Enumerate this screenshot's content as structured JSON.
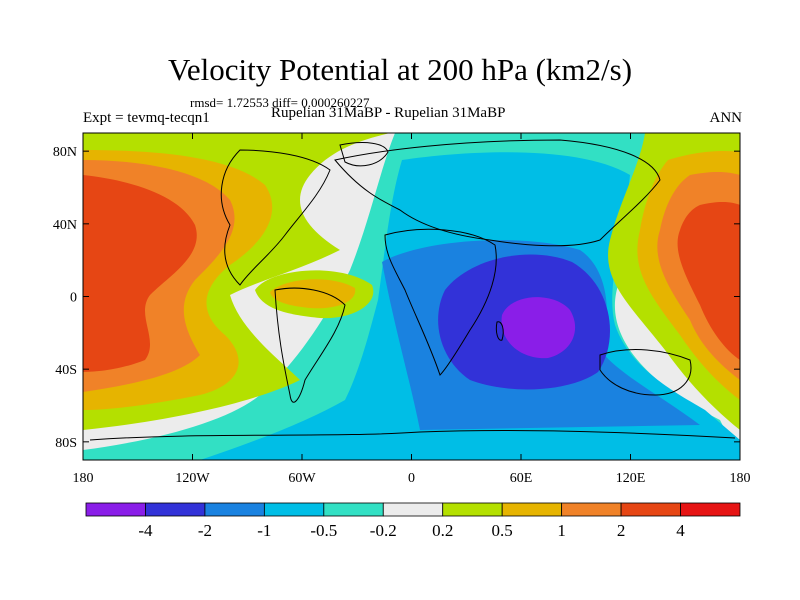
{
  "title": "Velocity Potential at 200 hPa (km2/s)",
  "stats": "rmsd= 1.72553 diff= 0.000260227",
  "experiment": "Expt = tevmq-tecqn1",
  "comparison": "Rupelian  31MaBP - Rupelian  31MaBP",
  "season": "ANN",
  "lat_ticks": [
    {
      "label": "80N",
      "lat": 80
    },
    {
      "label": "40N",
      "lat": 40
    },
    {
      "label": "0",
      "lat": 0
    },
    {
      "label": "40S",
      "lat": -40
    },
    {
      "label": "80S",
      "lat": -80
    }
  ],
  "lon_ticks": [
    {
      "label": "180",
      "lon": -180
    },
    {
      "label": "120W",
      "lon": -120
    },
    {
      "label": "60W",
      "lon": -60
    },
    {
      "label": "0",
      "lon": 0
    },
    {
      "label": "60E",
      "lon": 60
    },
    {
      "label": "120E",
      "lon": 120
    },
    {
      "label": "180",
      "lon": 180
    }
  ],
  "colorbar": {
    "colors": [
      "#8a1ee8",
      "#3232d8",
      "#1a82e0",
      "#00bee6",
      "#32e0c4",
      "#ececec",
      "#b4e000",
      "#e6b400",
      "#f08228",
      "#e64614",
      "#e61414"
    ],
    "labels": [
      "-4",
      "-2",
      "-1",
      "-0.5",
      "-0.2",
      "0.2",
      "0.5",
      "1",
      "2",
      "4"
    ]
  },
  "colors": {
    "c_m4": "#8a1ee8",
    "c_m2": "#3232d8",
    "c_m1": "#1a82e0",
    "c_m05": "#00bee6",
    "c_m02": "#32e0c4",
    "c_0": "#ececec",
    "c_02": "#b4e000",
    "c_05": "#e6b400",
    "c_1": "#f08228",
    "c_2": "#e64614"
  }
}
